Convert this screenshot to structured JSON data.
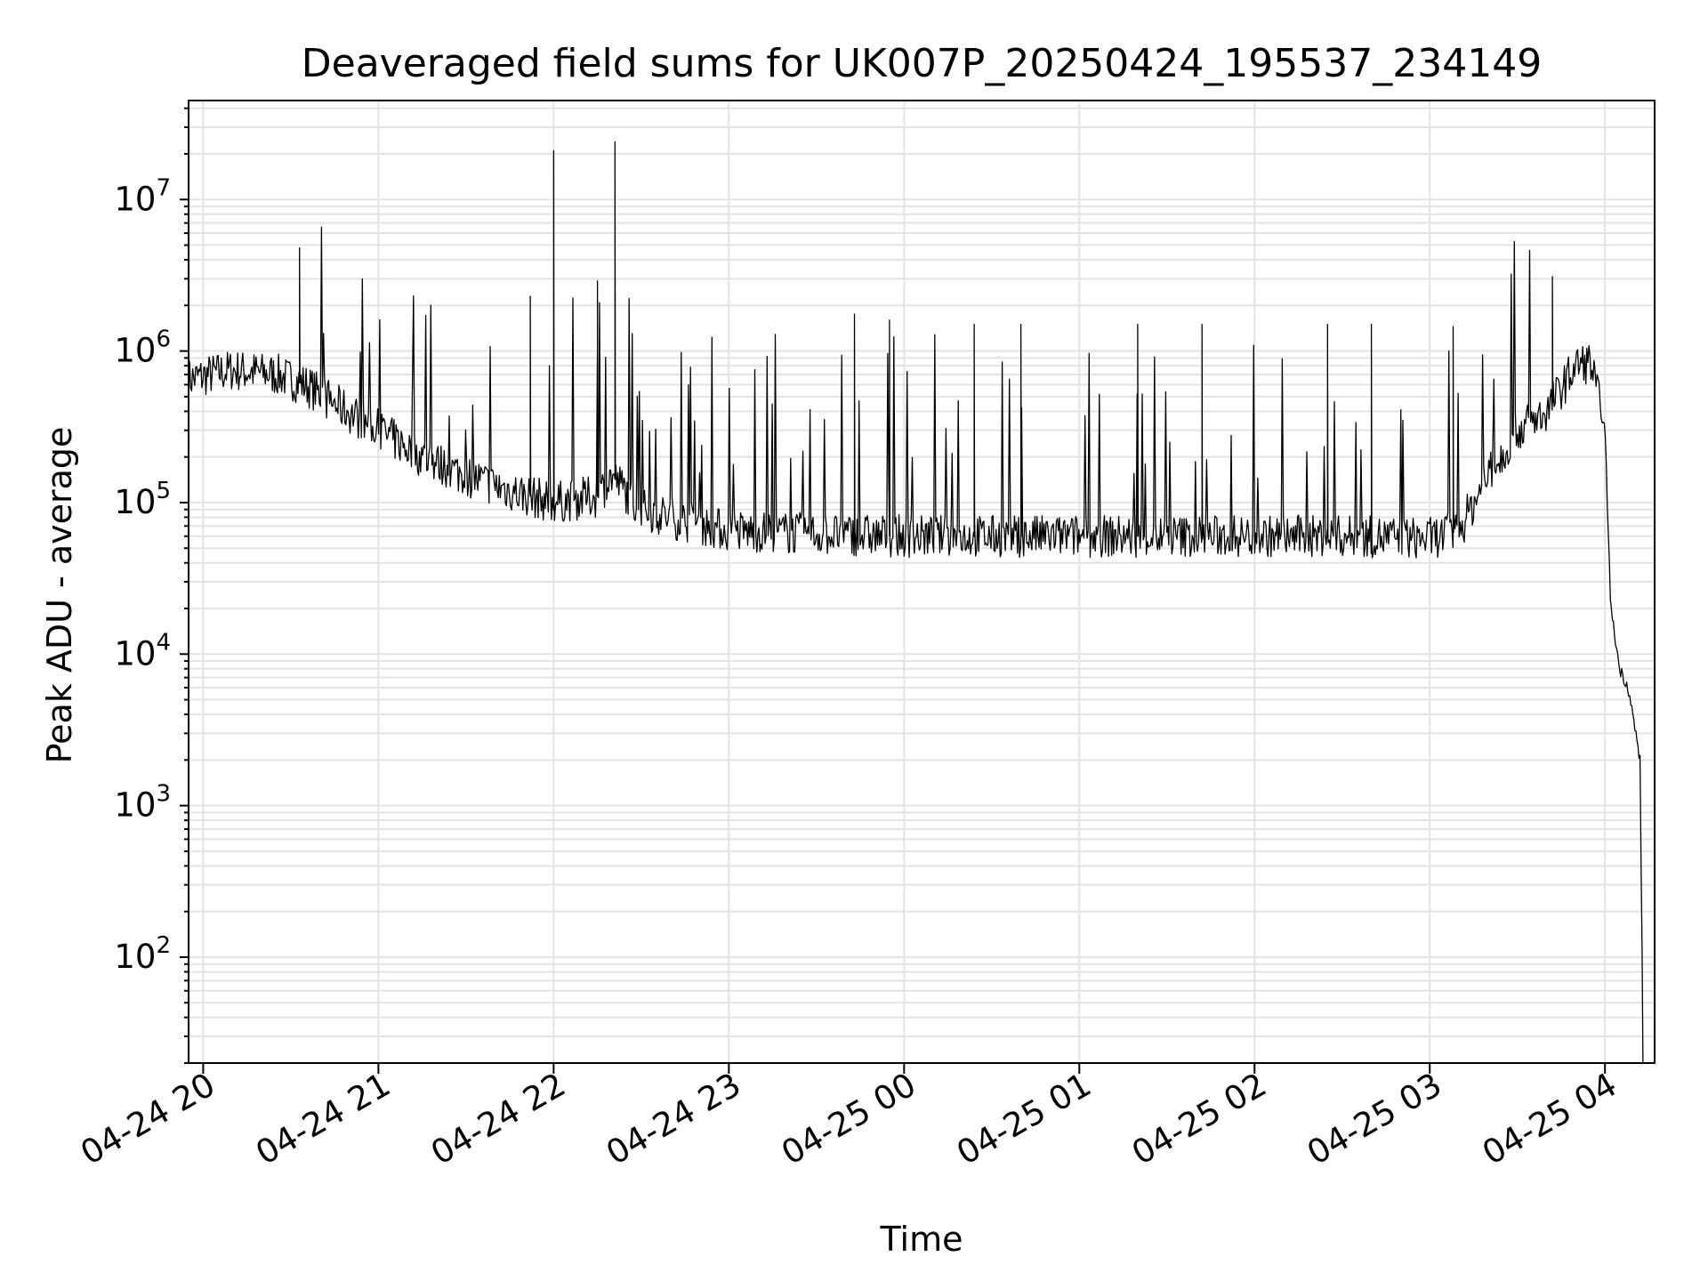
{
  "chart_data": {
    "type": "line",
    "title": "Deaveraged field sums for UK007P_20250424_195537_234149",
    "xlabel": "Time",
    "ylabel": "Peak ADU - average",
    "yscale": "log",
    "grid": true,
    "xlim": [
      "04-24 19:55",
      "04-25 04:17"
    ],
    "ylim": [
      20,
      45000000
    ],
    "x_ticks": [
      "04-24 20",
      "04-24 21",
      "04-24 22",
      "04-24 23",
      "04-25 00",
      "04-25 01",
      "04-25 02",
      "04-25 03",
      "04-25 04"
    ],
    "y_ticks": [
      {
        "base": "10",
        "exp": "2",
        "value": 100
      },
      {
        "base": "10",
        "exp": "3",
        "value": 1000
      },
      {
        "base": "10",
        "exp": "4",
        "value": 10000
      },
      {
        "base": "10",
        "exp": "5",
        "value": 100000
      },
      {
        "base": "10",
        "exp": "6",
        "value": 1000000
      },
      {
        "base": "10",
        "exp": "7",
        "value": 10000000
      }
    ],
    "line_color": "#000000",
    "series": [
      {
        "x": [
          "04-24 19:55",
          "04-24 20:10",
          "04-24 20:25",
          "04-24 20:35",
          "04-24 20:45",
          "04-24 21:00",
          "04-24 21:15",
          "04-24 21:30",
          "04-24 21:45",
          "04-24 22:00",
          "04-24 22:15",
          "04-24 22:20",
          "04-24 22:30",
          "04-24 22:45",
          "04-24 23:00",
          "04-24 23:30",
          "04-25 00:00",
          "04-25 00:30",
          "04-25 01:00",
          "04-25 01:30",
          "04-25 02:00",
          "04-25 02:30",
          "04-25 03:00",
          "04-25 03:10",
          "04-25 03:20",
          "04-25 03:30",
          "04-25 03:40",
          "04-25 03:50",
          "04-25 03:55",
          "04-25 04:00",
          "04-25 04:02",
          "04-25 04:05",
          "04-25 04:08",
          "04-25 04:12",
          "04-25 04:13"
        ],
        "y": [
          650000,
          750000,
          700000,
          600000,
          450000,
          300000,
          200000,
          150000,
          120000,
          100000,
          110000,
          150000,
          90000,
          75000,
          65000,
          62000,
          60000,
          60000,
          60000,
          60000,
          60000,
          60000,
          58000,
          65000,
          150000,
          300000,
          400000,
          800000,
          850000,
          300000,
          20000,
          8000,
          6000,
          2000,
          30
        ]
      }
    ],
    "spikes": [
      {
        "x": "04-24 20:33",
        "y": 4800000
      },
      {
        "x": "04-24 21:52",
        "y": 2300000
      },
      {
        "x": "04-24 22:00",
        "y": 21000000
      },
      {
        "x": "04-24 22:15",
        "y": 2900000
      },
      {
        "x": "04-24 22:21",
        "y": 24000000
      },
      {
        "x": "04-24 23:43",
        "y": 1750000
      },
      {
        "x": "04-24 23:55",
        "y": 1600000
      },
      {
        "x": "04-25 00:24",
        "y": 1500000
      },
      {
        "x": "04-25 00:40",
        "y": 1500000
      },
      {
        "x": "04-25 01:20",
        "y": 1500000
      },
      {
        "x": "04-25 01:42",
        "y": 1500000
      },
      {
        "x": "04-25 02:25",
        "y": 1500000
      },
      {
        "x": "04-25 02:40",
        "y": 1500000
      },
      {
        "x": "04-25 03:08",
        "y": 1450000
      },
      {
        "x": "04-25 03:42",
        "y": 3100000
      }
    ]
  }
}
